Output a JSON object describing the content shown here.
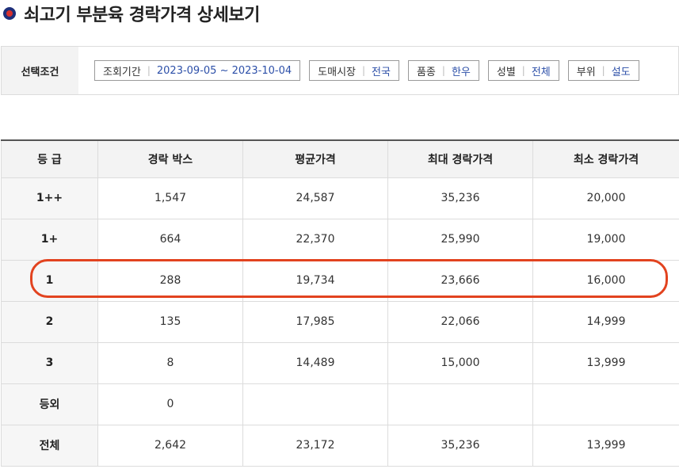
{
  "page": {
    "title": "쇠고기 부분육 경락가격 상세보기"
  },
  "conditions": {
    "label": "선택조건",
    "chips": [
      {
        "key": "조회기간",
        "value": "2023-09-05 ~ 2023-10-04"
      },
      {
        "key": "도매시장",
        "value": "전국"
      },
      {
        "key": "품종",
        "value": "한우"
      },
      {
        "key": "성별",
        "value": "전체"
      },
      {
        "key": "부위",
        "value": "설도"
      }
    ]
  },
  "table": {
    "headers": [
      "등 급",
      "경락 박스",
      "평균가격",
      "최대 경락가격",
      "최소 경락가격"
    ],
    "rows": [
      {
        "grade": "1++",
        "boxes": "1,547",
        "avg": "24,587",
        "max": "35,236",
        "min": "20,000"
      },
      {
        "grade": "1+",
        "boxes": "664",
        "avg": "22,370",
        "max": "25,990",
        "min": "19,000"
      },
      {
        "grade": "1",
        "boxes": "288",
        "avg": "19,734",
        "max": "23,666",
        "min": "16,000"
      },
      {
        "grade": "2",
        "boxes": "135",
        "avg": "17,985",
        "max": "22,066",
        "min": "14,999"
      },
      {
        "grade": "3",
        "boxes": "8",
        "avg": "14,489",
        "max": "15,000",
        "min": "13,999"
      },
      {
        "grade": "등외",
        "boxes": "0",
        "avg": "",
        "max": "",
        "min": ""
      },
      {
        "grade": "전체",
        "boxes": "2,642",
        "avg": "23,172",
        "max": "35,236",
        "min": "13,999"
      }
    ]
  },
  "highlight": {
    "row_grade": "1",
    "color": "#e2431f"
  },
  "colors": {
    "value_blue": "#2c4fa8",
    "header_bg": "#f3f3f3",
    "border": "#dcdcdc"
  }
}
